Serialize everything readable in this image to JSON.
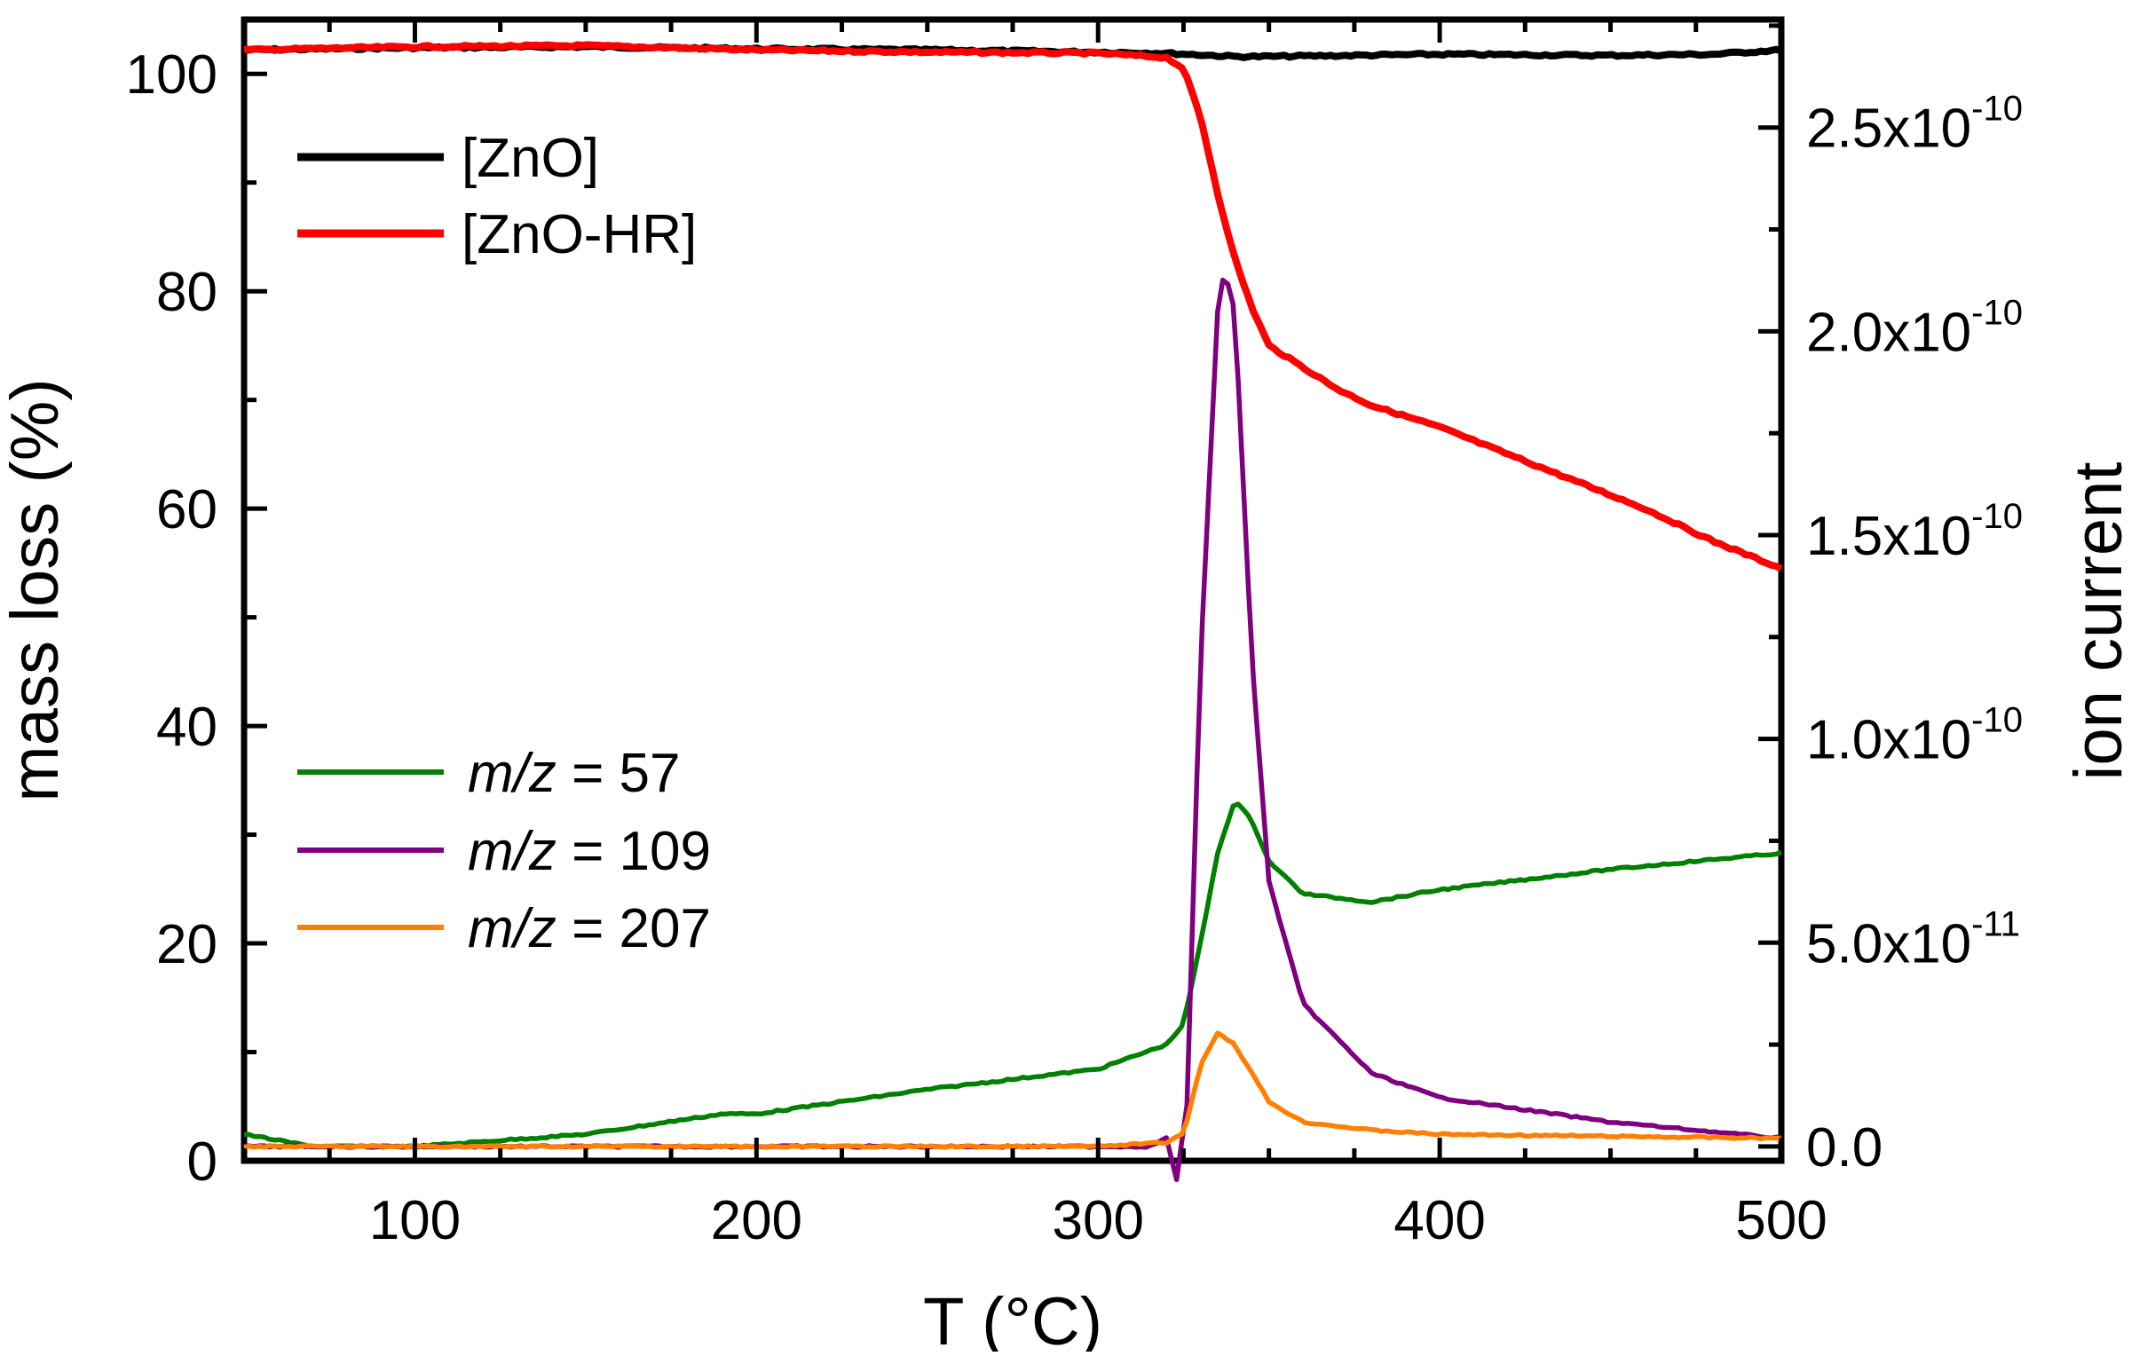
{
  "chart_data": {
    "type": "line",
    "xlabel": "T (°C)",
    "ylabel_left": "mass loss (%)",
    "ylabel_right": "ion current",
    "xlim": [
      50,
      500
    ],
    "ylim_left": [
      0,
      105
    ],
    "ylim_right": [
      -3.5e-12,
      2.765e-10
    ],
    "x_ticks": [
      "100",
      "200",
      "300",
      "400",
      "500"
    ],
    "x_tick_values": [
      100,
      200,
      300,
      400,
      500
    ],
    "y_left_ticks": [
      "0",
      "20",
      "40",
      "60",
      "80",
      "100"
    ],
    "y_left_tick_values": [
      0,
      20,
      40,
      60,
      80,
      100
    ],
    "y_right_ticks": [
      {
        "mantissa": "0.0",
        "exp": ""
      },
      {
        "mantissa": "5.0x10",
        "exp": "-11"
      },
      {
        "mantissa": "1.0x10",
        "exp": "-10"
      },
      {
        "mantissa": "1.5x10",
        "exp": "-10"
      },
      {
        "mantissa": "2.0x10",
        "exp": "-10"
      },
      {
        "mantissa": "2.5x10",
        "exp": "-10"
      }
    ],
    "y_right_tick_values": [
      0,
      5e-11,
      1e-10,
      1.5e-10,
      2e-10,
      2.5e-10
    ],
    "legend_mass": [
      {
        "label": "[ZnO]",
        "color": "#000000"
      },
      {
        "label": "[ZnO-HR]",
        "color": "#ff0000"
      }
    ],
    "legend_ion": [
      {
        "label_italic": "m/z",
        "label_rest": " = 57",
        "color": "#007f00"
      },
      {
        "label_italic": "m/z",
        "label_rest": " = 109",
        "color": "#7f007f"
      },
      {
        "label_italic": "m/z",
        "label_rest": " = 207",
        "color": "#ff7f00"
      }
    ],
    "series": [
      {
        "name": "[ZnO]",
        "axis": "left",
        "color": "#000000",
        "x": [
          50,
          100,
          150,
          200,
          250,
          300,
          320,
          340,
          350,
          400,
          450,
          480,
          500
        ],
        "y": [
          102.2,
          102.4,
          102.5,
          102.3,
          102.2,
          102.0,
          101.9,
          101.6,
          101.6,
          101.8,
          101.7,
          101.8,
          102.2
        ]
      },
      {
        "name": "[ZnO-HR]",
        "axis": "left",
        "color": "#ff0000",
        "x": [
          50,
          100,
          150,
          200,
          250,
          300,
          320,
          325,
          330,
          335,
          340,
          345,
          350,
          360,
          370,
          380,
          400,
          420,
          440,
          460,
          480,
          500
        ],
        "y": [
          102.2,
          102.5,
          102.6,
          102.2,
          102.0,
          101.9,
          101.5,
          100.5,
          96.0,
          89.0,
          83.0,
          78.5,
          75.0,
          73.0,
          71.0,
          69.5,
          67.5,
          65.0,
          62.5,
          60.0,
          57.0,
          54.5
        ]
      },
      {
        "name": "m/z = 57",
        "axis": "right",
        "color": "#007f00",
        "x": [
          50,
          70,
          100,
          150,
          190,
          200,
          250,
          300,
          320,
          325,
          330,
          335,
          340,
          345,
          350,
          360,
          380,
          400,
          450,
          500
        ],
        "y": [
          3e-12,
          0.0,
          0.0,
          3e-12,
          8e-12,
          8e-12,
          1.4e-11,
          1.9e-11,
          2.5e-11,
          3e-11,
          5e-11,
          7.2e-11,
          8.5e-11,
          8e-11,
          7e-11,
          6.2e-11,
          6e-11,
          6.3e-11,
          6.8e-11,
          7.2e-11
        ]
      },
      {
        "name": "m/z = 109",
        "axis": "right",
        "color": "#7f007f",
        "x": [
          50,
          100,
          200,
          300,
          315,
          320,
          323,
          326,
          330,
          335,
          337,
          340,
          345,
          350,
          360,
          380,
          400,
          450,
          500
        ],
        "y": [
          0.0,
          0.0,
          0.0,
          0.0,
          0.0,
          2e-12,
          -8e-12,
          1e-11,
          1.2e-10,
          2.05e-10,
          2.15e-10,
          2.05e-10,
          1.2e-10,
          6.5e-11,
          3.5e-11,
          1.8e-11,
          1.2e-11,
          6e-12,
          2e-12
        ]
      },
      {
        "name": "m/z = 207",
        "axis": "right",
        "color": "#ff7f00",
        "x": [
          50,
          100,
          200,
          300,
          320,
          325,
          330,
          335,
          340,
          345,
          350,
          360,
          380,
          400,
          450,
          500
        ],
        "y": [
          0.0,
          0.0,
          0.0,
          0.0,
          1e-12,
          3e-12,
          2e-11,
          2.8e-11,
          2.5e-11,
          1.8e-11,
          1.1e-11,
          6e-12,
          4e-12,
          3e-12,
          2.5e-12,
          2e-12
        ]
      }
    ]
  }
}
